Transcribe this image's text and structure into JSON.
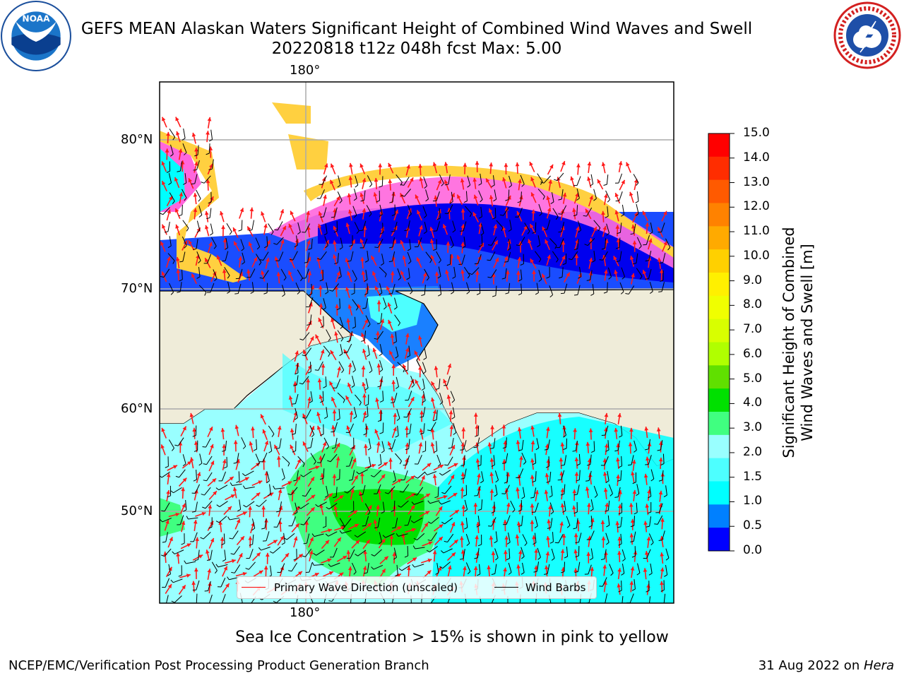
{
  "title": {
    "line1": "GEFS MEAN Alaskan Waters Significant Height of Combined Wind Waves and Swell",
    "line2": "20220818 t12z 048h fcst   Max: 5.00"
  },
  "map": {
    "lon_label_top": "180°",
    "lon_label_bottom": "180°",
    "lat_labels": [
      "80°N",
      "70°N",
      "60°N",
      "50°N"
    ],
    "legend": {
      "wave_label": "Primary Wave Direction (unscaled)",
      "wind_label": "Wind Barbs",
      "wave_color": "#ff0000",
      "wind_color": "#000000"
    },
    "land_color": "#efecd9",
    "ocean_color": "#99ffff"
  },
  "colorbar": {
    "title_line1": "Significant Height of Combined",
    "title_line2": "Wind Waves and Swell [m]",
    "ticks": [
      "15.0",
      "14.0",
      "13.0",
      "12.0",
      "11.0",
      "10.0",
      "9.0",
      "8.0",
      "7.0",
      "6.0",
      "5.0",
      "4.0",
      "3.0",
      "2.0",
      "1.5",
      "1.0",
      "0.5",
      "0.0"
    ],
    "colors": [
      "#ff0000",
      "#ff2d00",
      "#ff5a00",
      "#ff8200",
      "#ffaa00",
      "#ffd000",
      "#fff000",
      "#f0ff00",
      "#d8ff00",
      "#b0ff00",
      "#60e000",
      "#00e000",
      "#40ff80",
      "#99ffff",
      "#4dffff",
      "#00ffff",
      "#0080ff",
      "#0000ff"
    ]
  },
  "caption": "Sea Ice Concentration > 15% is shown in pink to yellow",
  "footer": {
    "left": "NCEP/EMC/Verification Post Processing Product Generation Branch",
    "right_prefix": "31 Aug 2022 on ",
    "right_machine": "Hera"
  },
  "logos": {
    "left": "noaa-logo",
    "right": "nws-logo"
  }
}
